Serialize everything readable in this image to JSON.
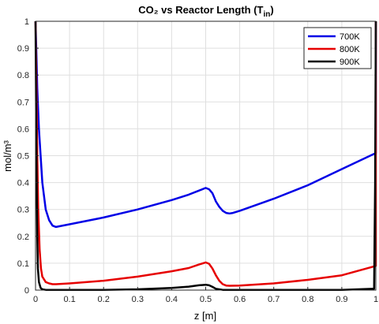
{
  "chart_data": {
    "type": "line",
    "title": "CO₂ vs Reactor Length (T",
    "title_sub": "in",
    "title_close": ")",
    "xlabel": "z [m]",
    "ylabel": "mol/m³",
    "xlim": [
      0,
      1
    ],
    "ylim": [
      0,
      1
    ],
    "grid": true,
    "legend_position": "top-right",
    "xticks": [
      0,
      0.1,
      0.2,
      0.3,
      0.4,
      0.5,
      0.6,
      0.7,
      0.8,
      0.9,
      1
    ],
    "xtick_labels": [
      "0",
      "0.1",
      "0.2",
      "0.3",
      "0.4",
      "0.5",
      "0.6",
      "0.7",
      "0.8",
      "0.9",
      "1"
    ],
    "yticks": [
      0,
      0.1,
      0.2,
      0.3,
      0.4,
      0.5,
      0.6,
      0.7,
      0.8,
      0.9,
      1
    ],
    "ytick_labels": [
      "0",
      "0.1",
      "0.2",
      "0.3",
      "0.4",
      "0.5",
      "0.6",
      "0.7",
      "0.8",
      "0.9",
      "1"
    ],
    "series": [
      {
        "name": "700K",
        "color": "#0000e6",
        "x": [
          0,
          0.002,
          0.005,
          0.01,
          0.02,
          0.03,
          0.04,
          0.05,
          0.06,
          0.1,
          0.2,
          0.3,
          0.4,
          0.45,
          0.48,
          0.5,
          0.51,
          0.52,
          0.53,
          0.54,
          0.55,
          0.56,
          0.57,
          0.58,
          0.6,
          0.7,
          0.8,
          0.9,
          1.0,
          1.0,
          1.0
        ],
        "y": [
          1.0,
          0.9,
          0.75,
          0.6,
          0.4,
          0.3,
          0.26,
          0.24,
          0.235,
          0.245,
          0.27,
          0.3,
          0.335,
          0.355,
          0.37,
          0.38,
          0.375,
          0.36,
          0.33,
          0.31,
          0.295,
          0.287,
          0.285,
          0.287,
          0.295,
          0.34,
          0.39,
          0.45,
          0.51,
          0.8,
          1.0
        ]
      },
      {
        "name": "800K",
        "color": "#e60000",
        "x": [
          0,
          0.002,
          0.005,
          0.008,
          0.012,
          0.016,
          0.02,
          0.03,
          0.04,
          0.05,
          0.06,
          0.1,
          0.2,
          0.3,
          0.4,
          0.45,
          0.48,
          0.5,
          0.51,
          0.52,
          0.53,
          0.54,
          0.55,
          0.56,
          0.57,
          0.6,
          0.7,
          0.8,
          0.9,
          1.0,
          1.0,
          1.0
        ],
        "y": [
          1.0,
          0.8,
          0.5,
          0.3,
          0.15,
          0.08,
          0.05,
          0.03,
          0.025,
          0.022,
          0.022,
          0.025,
          0.035,
          0.05,
          0.07,
          0.082,
          0.095,
          0.103,
          0.098,
          0.08,
          0.055,
          0.035,
          0.022,
          0.017,
          0.016,
          0.017,
          0.025,
          0.038,
          0.055,
          0.09,
          0.6,
          1.0
        ]
      },
      {
        "name": "900K",
        "color": "#000000",
        "x": [
          0,
          0.001,
          0.003,
          0.005,
          0.007,
          0.01,
          0.015,
          0.02,
          0.03,
          0.05,
          0.1,
          0.2,
          0.3,
          0.4,
          0.45,
          0.48,
          0.5,
          0.51,
          0.52,
          0.53,
          0.55,
          0.6,
          0.7,
          0.8,
          0.9,
          0.995,
          0.998,
          1.0
        ],
        "y": [
          1.0,
          0.8,
          0.45,
          0.2,
          0.08,
          0.03,
          0.008,
          0.003,
          0.001,
          0.0005,
          0.0005,
          0.001,
          0.003,
          0.008,
          0.013,
          0.018,
          0.02,
          0.018,
          0.012,
          0.005,
          0.001,
          0.0005,
          0.0005,
          0.0005,
          0.001,
          0.005,
          0.4,
          1.0
        ]
      }
    ]
  }
}
